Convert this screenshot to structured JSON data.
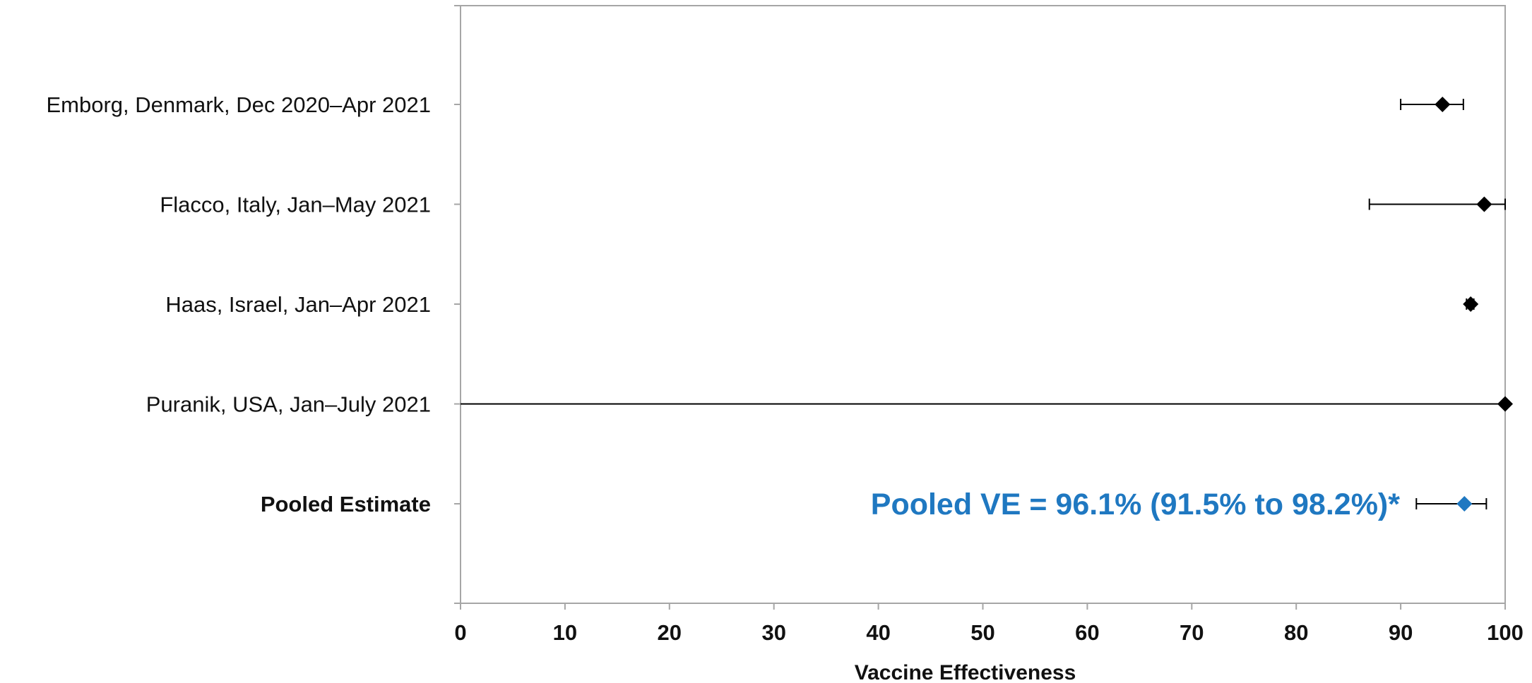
{
  "chart_data": {
    "type": "scatter",
    "subtype": "forest-plot",
    "xlabel": "Vaccine Effectiveness",
    "ylabel": "",
    "xlim": [
      0,
      100
    ],
    "x_ticks": [
      "0",
      "10",
      "20",
      "30",
      "40",
      "50",
      "60",
      "70",
      "80",
      "90",
      "100"
    ],
    "grid": false,
    "legend": "none",
    "colors": {
      "study": "#000000",
      "pooled": "#1F78C1",
      "frame": "#A6A6A6"
    },
    "rows": [
      {
        "label": "Emborg, Denmark, Dec 2020–Apr 2021",
        "estimate": 94,
        "lower": 90,
        "upper": 96,
        "bold": false,
        "kind": "study"
      },
      {
        "label": "Flacco, Italy, Jan–May 2021",
        "estimate": 98,
        "lower": 87,
        "upper": 100,
        "bold": false,
        "kind": "study"
      },
      {
        "label": "Haas, Israel, Jan–Apr 2021",
        "estimate": 96.7,
        "lower": 96.3,
        "upper": 97.0,
        "bold": false,
        "kind": "study"
      },
      {
        "label": "Puranik, USA, Jan–July 2021",
        "estimate": 100,
        "lower": 0,
        "upper": 100,
        "bold": false,
        "kind": "study"
      },
      {
        "label": "Pooled Estimate",
        "estimate": 96.1,
        "lower": 91.5,
        "upper": 98.2,
        "bold": true,
        "kind": "pooled"
      }
    ],
    "annotations": [
      {
        "text": "Pooled VE = 96.1% (91.5% to 98.2%)*",
        "row": 4
      }
    ]
  }
}
